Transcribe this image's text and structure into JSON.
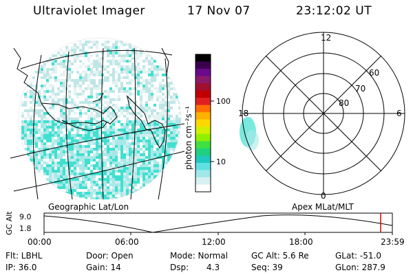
{
  "header": {
    "instrument": "Ultraviolet Imager",
    "date": "17 Nov 07",
    "time": "23:12:02 UT"
  },
  "colorbar": {
    "label": "photon cm⁻²s⁻¹",
    "ticks": [
      "100",
      "10"
    ],
    "colors": [
      "#000000",
      "#3a0050",
      "#6a0a8a",
      "#8a1a6a",
      "#a01030",
      "#c00000",
      "#e02020",
      "#ff7000",
      "#ffb000",
      "#ffd800",
      "#d0f000",
      "#90f000",
      "#40e040",
      "#20d080",
      "#20c8c0",
      "#60e0e0",
      "#a0e8e8",
      "#d8f0f0",
      "#ffffff"
    ]
  },
  "polar": {
    "mlt_labels": {
      "top": "12",
      "left": "18",
      "right": "6",
      "bottom": "0"
    },
    "lat_labels": [
      "60",
      "70",
      "80"
    ]
  },
  "panels": {
    "left_caption": "Geographic Lat/Lon",
    "right_caption": "Apex MLat/MLT"
  },
  "orbit": {
    "axis_label": "GC Alt",
    "y_ticks": [
      "9.0",
      "1.8"
    ],
    "x_ticks": [
      "00:00",
      "06:00",
      "12:00",
      "18:00",
      "23:59"
    ],
    "marker_color": "#d00000"
  },
  "info": {
    "flt": "Flt: LBHL",
    "door": "Door: Open",
    "mode": "Mode: Normal",
    "gcalt": "GC Alt: 5.6 Re",
    "glat": "GLat: -51.0",
    "ip": "IP: 36.0",
    "gain": "Gain: 14",
    "dsp_label": "Dsp:",
    "dsp_value": "4.3",
    "seq": "Seq: 39",
    "glon": "GLon: 287.9"
  }
}
